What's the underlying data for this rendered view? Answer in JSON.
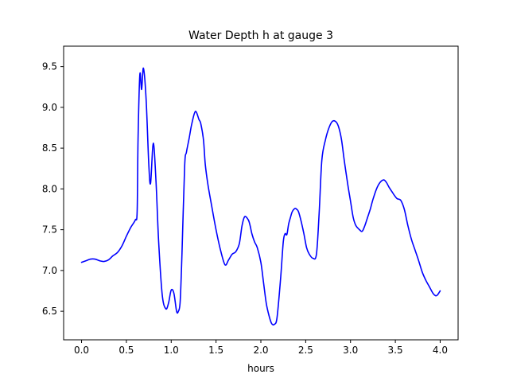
{
  "chart_data": {
    "type": "line",
    "title": "Water Depth h at gauge 3",
    "xlabel": "hours",
    "ylabel": "",
    "xlim": [
      -0.2,
      4.2
    ],
    "ylim": [
      6.15,
      9.75
    ],
    "xticks": [
      0.0,
      0.5,
      1.0,
      1.5,
      2.0,
      2.5,
      3.0,
      3.5,
      4.0
    ],
    "xtick_labels": [
      "0.0",
      "0.5",
      "1.0",
      "1.5",
      "2.0",
      "2.5",
      "3.0",
      "3.5",
      "4.0"
    ],
    "yticks": [
      6.5,
      7.0,
      7.5,
      8.0,
      8.5,
      9.0,
      9.5
    ],
    "ytick_labels": [
      "6.5",
      "7.0",
      "7.5",
      "8.0",
      "8.5",
      "9.0",
      "9.5"
    ],
    "grid": false,
    "legend": "none",
    "series": [
      {
        "color": "#0000ff",
        "x": [
          0.0,
          0.05,
          0.1,
          0.15,
          0.2,
          0.25,
          0.3,
          0.35,
          0.4,
          0.45,
          0.5,
          0.55,
          0.6,
          0.62,
          0.63,
          0.65,
          0.67,
          0.69,
          0.72,
          0.75,
          0.77,
          0.8,
          0.83,
          0.86,
          0.9,
          0.94,
          0.97,
          1.0,
          1.03,
          1.06,
          1.08,
          1.1,
          1.12,
          1.15,
          1.17,
          1.2,
          1.23,
          1.27,
          1.31,
          1.33,
          1.36,
          1.38,
          1.41,
          1.45,
          1.5,
          1.55,
          1.6,
          1.64,
          1.68,
          1.72,
          1.76,
          1.79,
          1.82,
          1.86,
          1.88,
          1.9,
          1.93,
          1.96,
          2.0,
          2.03,
          2.06,
          2.09,
          2.12,
          2.15,
          2.18,
          2.22,
          2.25,
          2.27,
          2.29,
          2.31,
          2.33,
          2.35,
          2.38,
          2.4,
          2.42,
          2.45,
          2.48,
          2.51,
          2.54,
          2.58,
          2.62,
          2.65,
          2.68,
          2.72,
          2.76,
          2.8,
          2.84,
          2.87,
          2.9,
          2.93,
          2.97,
          3.0,
          3.03,
          3.06,
          3.1,
          3.13,
          3.16,
          3.19,
          3.22,
          3.25,
          3.29,
          3.33,
          3.37,
          3.4,
          3.43,
          3.46,
          3.49,
          3.52,
          3.56,
          3.6,
          3.64,
          3.68,
          3.72,
          3.76,
          3.8,
          3.84,
          3.88,
          3.92,
          3.95,
          3.97,
          4.0
        ],
        "y": [
          7.1,
          7.12,
          7.14,
          7.14,
          7.12,
          7.11,
          7.13,
          7.18,
          7.22,
          7.3,
          7.42,
          7.53,
          7.62,
          7.72,
          8.6,
          9.4,
          9.22,
          9.48,
          9.1,
          8.3,
          8.07,
          8.56,
          8.1,
          7.35,
          6.7,
          6.53,
          6.6,
          6.76,
          6.72,
          6.5,
          6.5,
          6.62,
          7.2,
          8.28,
          8.45,
          8.62,
          8.8,
          8.95,
          8.85,
          8.8,
          8.6,
          8.3,
          8.05,
          7.8,
          7.5,
          7.25,
          7.07,
          7.13,
          7.2,
          7.23,
          7.33,
          7.55,
          7.66,
          7.62,
          7.55,
          7.45,
          7.35,
          7.28,
          7.1,
          6.85,
          6.6,
          6.45,
          6.35,
          6.34,
          6.42,
          6.9,
          7.35,
          7.45,
          7.44,
          7.57,
          7.65,
          7.72,
          7.76,
          7.75,
          7.72,
          7.6,
          7.45,
          7.28,
          7.2,
          7.15,
          7.2,
          7.7,
          8.35,
          8.6,
          8.75,
          8.83,
          8.82,
          8.75,
          8.6,
          8.35,
          8.05,
          7.85,
          7.65,
          7.55,
          7.5,
          7.48,
          7.55,
          7.65,
          7.75,
          7.87,
          8.0,
          8.08,
          8.11,
          8.08,
          8.02,
          7.97,
          7.92,
          7.88,
          7.86,
          7.75,
          7.55,
          7.38,
          7.25,
          7.12,
          6.98,
          6.88,
          6.8,
          6.72,
          6.69,
          6.7,
          6.75
        ]
      }
    ]
  }
}
